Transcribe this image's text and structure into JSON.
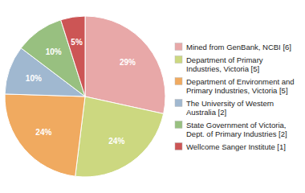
{
  "chart_data": {
    "type": "pie",
    "categories": [
      "Mined from GenBank, NCBI [6]",
      "Department of Primary\nIndustries, Victoria [5]",
      "Department of Environment and\nPrimary Industries, Victoria [5]",
      "The University of Western\nAustralia [2]",
      "State Government of Victoria,\nDept. of Primary Industries [2]",
      "Wellcome Sanger Institute [1]"
    ],
    "values": [
      29,
      24,
      24,
      10,
      10,
      5
    ],
    "value_labels": [
      "29%",
      "24%",
      "24%",
      "10%",
      "10%",
      "5%"
    ],
    "data_labels": true,
    "colors": [
      "#e8a8a8",
      "#ccd880",
      "#f0aa60",
      "#a0b8d0",
      "#98c080",
      "#cc5555"
    ],
    "legend": "right"
  }
}
